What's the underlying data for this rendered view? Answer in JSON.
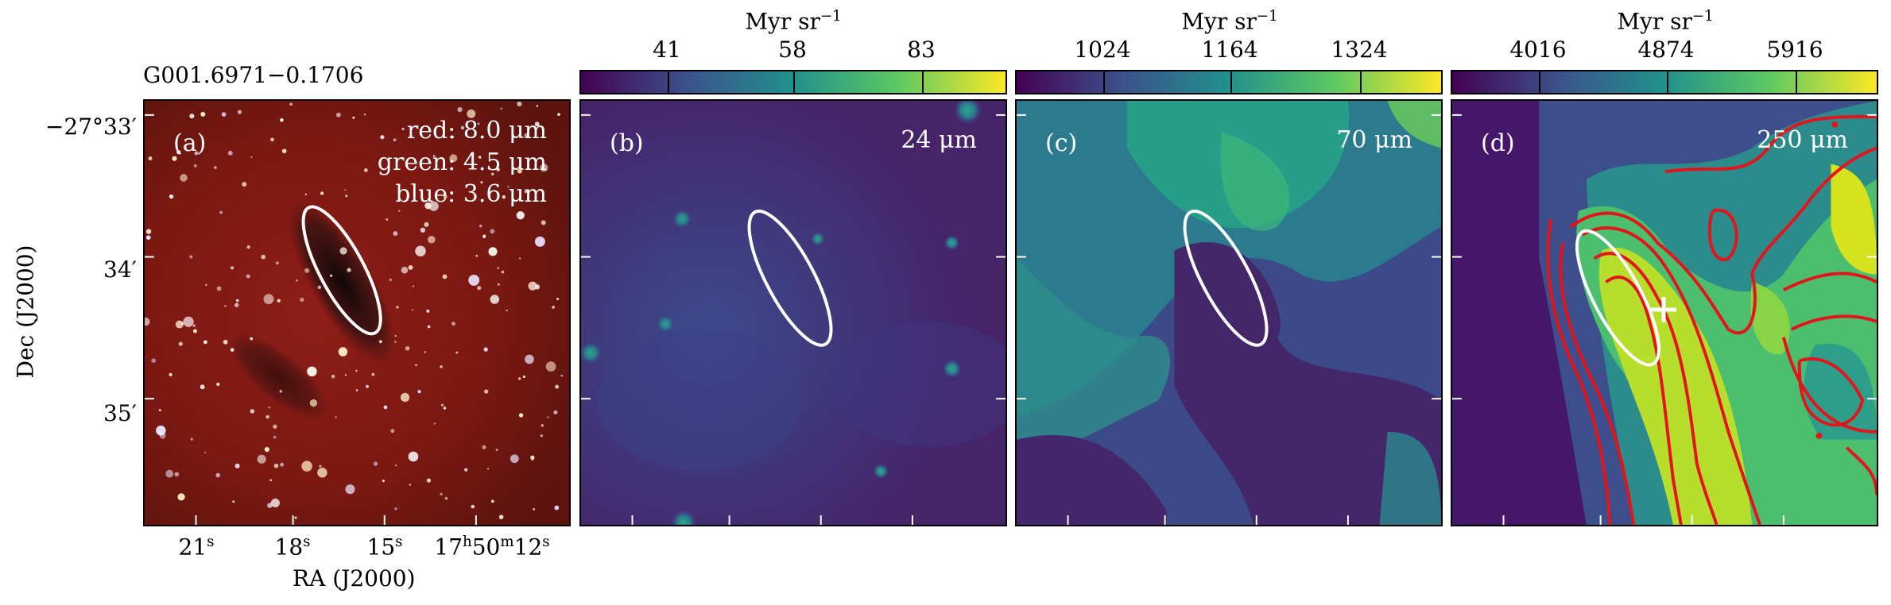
{
  "source_name": "G001.6971−0.1706",
  "panels": [
    {
      "label": "(a)",
      "bands": [
        "red: 8.0 μm",
        "green: 4.5 μm",
        "blue: 3.6 μm"
      ]
    },
    {
      "label": "(b)",
      "wavelength": "24 μm"
    },
    {
      "label": "(c)",
      "wavelength": "70 μm"
    },
    {
      "label": "(d)",
      "wavelength": "250 μm"
    }
  ],
  "colorbars": [
    {
      "unit": "Myr sr",
      "unit_exp": "−1",
      "ticks": [
        "41",
        "58",
        "83"
      ]
    },
    {
      "unit": "Myr sr",
      "unit_exp": "−1",
      "ticks": [
        "1024",
        "1164",
        "1324"
      ]
    },
    {
      "unit": "Myr sr",
      "unit_exp": "−1",
      "ticks": [
        "4016",
        "4874",
        "5916"
      ]
    }
  ],
  "axes": {
    "ylabel": "Dec (J2000)",
    "xlabel": "RA (J2000)",
    "yticks": [
      "−27°33′",
      "34′",
      "35′"
    ],
    "xticks": [
      {
        "base": "21",
        "sup": "s"
      },
      {
        "base": "18",
        "sup": "s"
      },
      {
        "base": "15",
        "sup": "s"
      },
      {
        "pre": "17",
        "pre_sup": "h",
        "base": "50",
        "mid_sup": "m",
        "tail": "12",
        "sup": "s"
      }
    ]
  },
  "colors": {
    "ellipse": "#ffffff",
    "contour": "#e4141b",
    "viridis_low": "#46185a",
    "viridis_mid": "#26928d",
    "viridis_high": "#e7e51a"
  }
}
